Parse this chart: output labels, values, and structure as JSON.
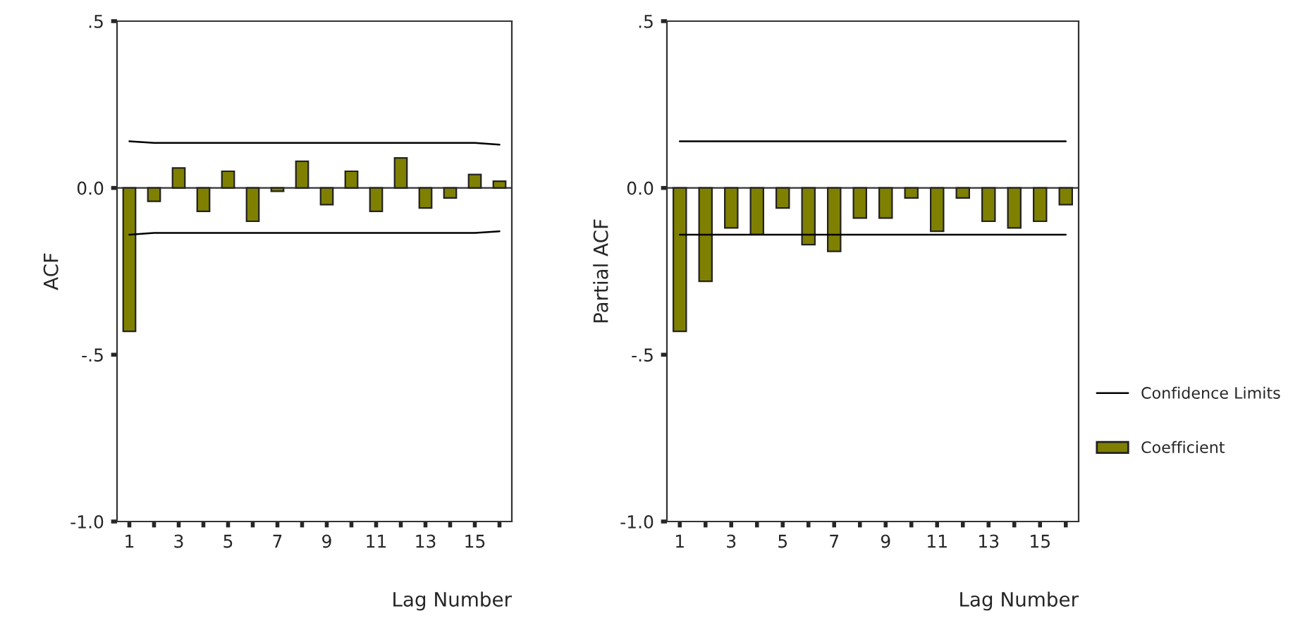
{
  "chart_data": [
    {
      "type": "bar",
      "ylabel": "ACF",
      "xlabel": "Lag Number",
      "x": [
        1,
        2,
        3,
        4,
        5,
        6,
        7,
        8,
        9,
        10,
        11,
        12,
        13,
        14,
        15,
        16
      ],
      "xlim": [
        0.5,
        16.5
      ],
      "xticks": [
        1,
        {
          "value": 2,
          "label": null
        },
        3,
        {
          "value": 4,
          "label": null
        },
        5,
        {
          "value": 6,
          "label": null
        },
        7,
        {
          "value": 8,
          "label": null
        },
        9,
        {
          "value": 10,
          "label": null
        },
        11,
        {
          "value": 12,
          "label": null
        },
        13,
        {
          "value": 14,
          "label": null
        },
        15,
        {
          "value": 16,
          "label": null
        }
      ],
      "ylim": [
        -1.0,
        0.5
      ],
      "yticks": [
        {
          "value": -1.0,
          "label": "-1.0"
        },
        {
          "value": -0.5,
          "label": "-.5"
        },
        {
          "value": 0.0,
          "label": "0.0"
        },
        {
          "value": 0.5,
          "label": ".5"
        }
      ],
      "series": [
        {
          "color": "#808000",
          "values": [
            -0.43,
            -0.04,
            0.06,
            -0.07,
            0.05,
            -0.1,
            -0.01,
            0.08,
            -0.05,
            0.05,
            -0.07,
            0.09,
            -0.06,
            -0.03,
            0.04,
            0.02
          ]
        },
        {
          "type": "line",
          "color": "#000000",
          "values": [
            0.14,
            0.135,
            0.135,
            0.135,
            0.135,
            0.135,
            0.135,
            0.135,
            0.135,
            0.135,
            0.135,
            0.135,
            0.135,
            0.135,
            0.135,
            0.13
          ]
        },
        {
          "type": "line",
          "color": "#000000",
          "values": [
            -0.14,
            -0.135,
            -0.135,
            -0.135,
            -0.135,
            -0.135,
            -0.135,
            -0.135,
            -0.135,
            -0.135,
            -0.135,
            -0.135,
            -0.135,
            -0.135,
            -0.135,
            -0.13
          ]
        }
      ],
      "legend": false
    },
    {
      "type": "bar",
      "ylabel": "Partial ACF",
      "xlabel": "Lag Number",
      "x": [
        1,
        2,
        3,
        4,
        5,
        6,
        7,
        8,
        9,
        10,
        11,
        12,
        13,
        14,
        15,
        16
      ],
      "xlim": [
        0.5,
        16.5
      ],
      "xticks": [
        1,
        {
          "value": 2,
          "label": null
        },
        3,
        {
          "value": 4,
          "label": null
        },
        5,
        {
          "value": 6,
          "label": null
        },
        7,
        {
          "value": 8,
          "label": null
        },
        9,
        {
          "value": 10,
          "label": null
        },
        11,
        {
          "value": 12,
          "label": null
        },
        13,
        {
          "value": 14,
          "label": null
        },
        15,
        {
          "value": 16,
          "label": null
        }
      ],
      "ylim": [
        -1.0,
        0.5
      ],
      "yticks": [
        {
          "value": -1.0,
          "label": "-1.0"
        },
        {
          "value": -0.5,
          "label": "-.5"
        },
        {
          "value": 0.0,
          "label": "0.0"
        },
        {
          "value": 0.5,
          "label": ".5"
        }
      ],
      "series": [
        {
          "name": "Coefficient",
          "color": "#808000",
          "values": [
            -0.43,
            -0.28,
            -0.12,
            -0.14,
            -0.06,
            -0.17,
            -0.19,
            -0.09,
            -0.09,
            -0.03,
            -0.13,
            -0.03,
            -0.1,
            -0.12,
            -0.1,
            -0.05
          ]
        },
        {
          "type": "line",
          "name": "Confidence Limits",
          "color": "#000000",
          "values": [
            0.14,
            0.14,
            0.14,
            0.14,
            0.14,
            0.14,
            0.14,
            0.14,
            0.14,
            0.14,
            0.14,
            0.14,
            0.14,
            0.14,
            0.14,
            0.14
          ]
        },
        {
          "type": "line",
          "color": "#000000",
          "values": [
            -0.14,
            -0.14,
            -0.14,
            -0.14,
            -0.14,
            -0.14,
            -0.14,
            -0.14,
            -0.14,
            -0.14,
            -0.14,
            -0.14,
            -0.14,
            -0.14,
            -0.14,
            -0.14
          ]
        }
      ],
      "legend": "right"
    }
  ]
}
